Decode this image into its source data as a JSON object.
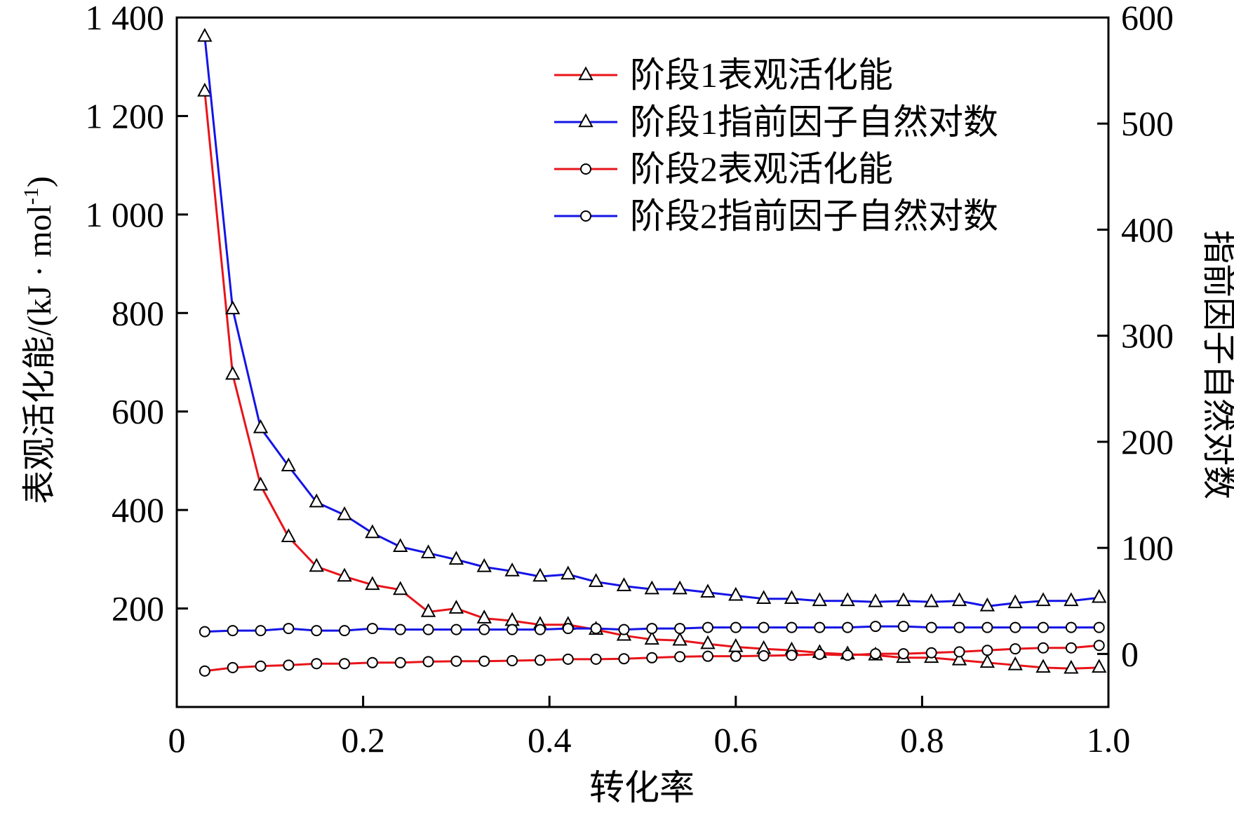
{
  "chart_data": {
    "type": "line",
    "xlabel": "转化率",
    "ylabel_left": "表观活化能/(kJ · mol",
    "ylabel_left_sup": "-1",
    "ylabel_left_close": ")",
    "ylabel_right": "指前因子自然对数",
    "xlim": [
      0,
      1.0
    ],
    "ylim_left": [
      0,
      1400
    ],
    "ylim_right": [
      -50,
      600
    ],
    "x_ticks": [
      0,
      0.2,
      0.4,
      0.6,
      0.8,
      1.0
    ],
    "x_tick_labels": [
      "0",
      "0.2",
      "0.4",
      "0.6",
      "0.8",
      "1.0"
    ],
    "y_left_ticks": [
      200,
      400,
      600,
      800,
      1000,
      1200,
      1400
    ],
    "y_left_tick_labels": [
      "200",
      "400",
      "600",
      "800",
      "1 000",
      "1 200",
      "1 400"
    ],
    "y_right_ticks": [
      0,
      100,
      200,
      300,
      400,
      500,
      600
    ],
    "y_right_tick_labels": [
      "0",
      "100",
      "200",
      "300",
      "400",
      "500",
      "600"
    ],
    "legend_position": "top-right",
    "grid": false,
    "x": [
      0.03,
      0.06,
      0.09,
      0.12,
      0.15,
      0.18,
      0.21,
      0.24,
      0.27,
      0.3,
      0.33,
      0.36,
      0.39,
      0.42,
      0.45,
      0.48,
      0.51,
      0.54,
      0.57,
      0.6,
      0.63,
      0.66,
      0.69,
      0.72,
      0.75,
      0.78,
      0.81,
      0.84,
      0.87,
      0.9,
      0.93,
      0.96,
      0.99
    ],
    "series": [
      {
        "name": "阶段1表观活化能",
        "axis": "left",
        "color": "#e8141a",
        "marker": "triangle",
        "values": [
          1250,
          675,
          450,
          345,
          285,
          265,
          248,
          238,
          193,
          200,
          180,
          175,
          167,
          167,
          157,
          145,
          137,
          135,
          128,
          122,
          118,
          115,
          110,
          107,
          105,
          100,
          100,
          95,
          90,
          85,
          80,
          78,
          80
        ]
      },
      {
        "name": "阶段1指前因子自然对数",
        "axis": "right",
        "color": "#1414e6",
        "marker": "triangle",
        "values": [
          582,
          325,
          213,
          177,
          143,
          131,
          114,
          101,
          95,
          89,
          82,
          78,
          73,
          75,
          68,
          64,
          61,
          61,
          58,
          55,
          52,
          52,
          50,
          50,
          49,
          50,
          49,
          50,
          45,
          48,
          50,
          50,
          53
        ]
      },
      {
        "name": "阶段2表观活化能",
        "axis": "left",
        "color": "#e8141a",
        "marker": "circle",
        "values": [
          73,
          80,
          83,
          85,
          88,
          88,
          90,
          90,
          92,
          93,
          93,
          94,
          95,
          97,
          97,
          98,
          100,
          102,
          103,
          103,
          104,
          105,
          107,
          105,
          108,
          108,
          110,
          112,
          115,
          118,
          120,
          120,
          125
        ]
      },
      {
        "name": "阶段2指前因子自然对数",
        "axis": "right",
        "color": "#1414e6",
        "marker": "circle",
        "values": [
          21,
          22,
          22,
          24,
          22,
          22,
          24,
          23,
          23,
          23,
          23,
          23,
          23,
          24,
          24,
          23,
          24,
          24,
          25,
          25,
          25,
          25,
          25,
          25,
          26,
          26,
          25,
          25,
          25,
          25,
          25,
          25,
          25
        ]
      }
    ]
  }
}
